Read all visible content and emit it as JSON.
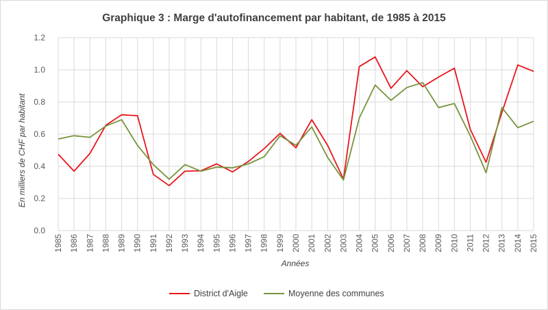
{
  "chart_data": {
    "type": "line",
    "title": "Graphique 3 : Marge d'autofinancement par habitant, de 1985 à 2015",
    "xlabel": "Années",
    "ylabel": "En milliers de CHF par habitant",
    "x": [
      "1985",
      "1986",
      "1987",
      "1988",
      "1989",
      "1990",
      "1991",
      "1992",
      "1993",
      "1994",
      "1995",
      "1996",
      "1997",
      "1998",
      "1999",
      "2000",
      "2001",
      "2002",
      "2003",
      "2004",
      "2005",
      "2006",
      "2007",
      "2008",
      "2009",
      "2010",
      "2011",
      "2012",
      "2013",
      "2014",
      "2015"
    ],
    "yticks": [
      "0.0",
      "0.2",
      "0.4",
      "0.6",
      "0.8",
      "1.0",
      "1.2"
    ],
    "ylim": [
      0,
      1.2
    ],
    "grid": true,
    "legend_position": "bottom",
    "series": [
      {
        "name": "District d'Aigle",
        "color": "#e8141c",
        "values": [
          0.475,
          0.37,
          0.48,
          0.655,
          0.72,
          0.715,
          0.35,
          0.28,
          0.37,
          0.372,
          0.415,
          0.365,
          0.43,
          0.51,
          0.605,
          0.515,
          0.69,
          0.53,
          0.32,
          1.02,
          1.08,
          0.885,
          0.995,
          0.895,
          0.955,
          1.01,
          0.63,
          0.425,
          0.735,
          1.03,
          0.99
        ]
      },
      {
        "name": "Moyenne des communes",
        "color": "#76933c",
        "values": [
          0.57,
          0.59,
          0.58,
          0.65,
          0.69,
          0.53,
          0.41,
          0.32,
          0.41,
          0.37,
          0.395,
          0.39,
          0.415,
          0.46,
          0.59,
          0.53,
          0.645,
          0.455,
          0.315,
          0.7,
          0.905,
          0.81,
          0.89,
          0.92,
          0.765,
          0.79,
          0.59,
          0.36,
          0.765,
          0.64,
          0.68
        ]
      }
    ]
  }
}
